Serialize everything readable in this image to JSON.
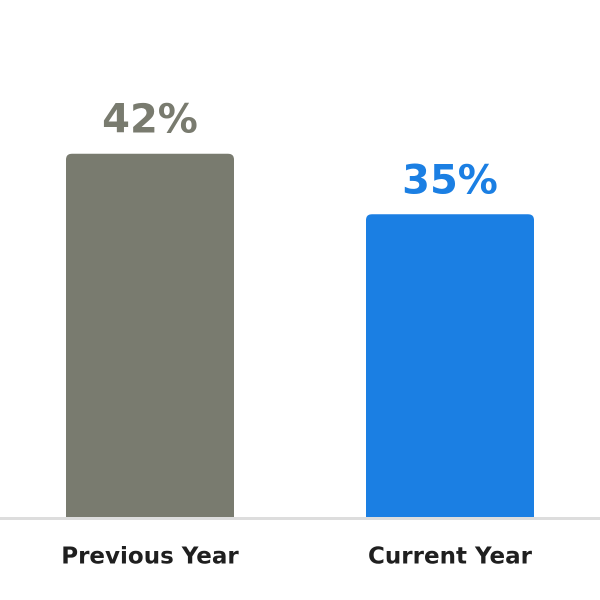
{
  "chart_data": {
    "type": "bar",
    "categories": [
      "Previous Year",
      "Current Year"
    ],
    "values": [
      42,
      35
    ],
    "value_labels": [
      "42%",
      "35%"
    ],
    "colors": [
      "#797b6f",
      "#1b7fe3"
    ]
  }
}
